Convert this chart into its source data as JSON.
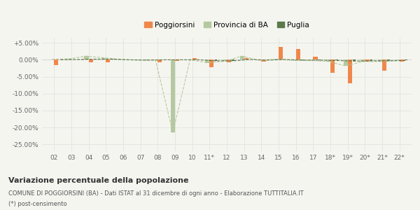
{
  "labels": [
    "02",
    "03",
    "04",
    "05",
    "06",
    "07",
    "08",
    "09",
    "10",
    "11*",
    "12",
    "13",
    "14",
    "15",
    "16",
    "17",
    "18*",
    "19*",
    "20*",
    "21*",
    "22*"
  ],
  "poggiorsini": [
    -1.5,
    0.0,
    -0.8,
    -0.8,
    0.0,
    0.0,
    -0.8,
    -0.3,
    0.4,
    -2.2,
    -0.8,
    0.5,
    -0.5,
    3.8,
    3.2,
    1.0,
    -3.8,
    -7.0,
    -0.5,
    -3.2,
    -0.5
  ],
  "provincia_ba": [
    0.15,
    0.3,
    1.1,
    0.6,
    0.1,
    -0.1,
    -0.1,
    -21.5,
    0.05,
    -0.9,
    -0.4,
    1.1,
    -0.2,
    0.2,
    -0.2,
    -0.2,
    -0.5,
    -1.8,
    -0.5,
    -0.5,
    -0.2
  ],
  "puglia": [
    0.0,
    0.1,
    0.2,
    0.2,
    0.0,
    -0.1,
    0.0,
    0.0,
    0.0,
    -0.3,
    -0.3,
    0.1,
    -0.1,
    0.1,
    -0.1,
    -0.1,
    -0.2,
    -0.4,
    -0.3,
    -0.3,
    -0.2
  ],
  "color_poggiorsini": "#f0874a",
  "color_provincia": "#b5c9a0",
  "color_puglia": "#5a7a4a",
  "bg_color": "#f5f5f0",
  "grid_color": "#dddddd",
  "ylim": [
    -27,
    6.5
  ],
  "yticks": [
    5,
    0,
    -5,
    -10,
    -15,
    -20,
    -25
  ],
  "ytick_labels": [
    "+5.00%",
    "0.00%",
    "-5.00%",
    "-10.00%",
    "-15.00%",
    "-20.00%",
    "-25.00%"
  ],
  "title_bold": "Variazione percentuale della popolazione",
  "subtitle1": "COMUNE DI POGGIORSINI (BA) - Dati ISTAT al 31 dicembre di ogni anno - Elaborazione TUTTITALIA.IT",
  "subtitle2": "(*) post-censimento",
  "bar_width": 0.25
}
